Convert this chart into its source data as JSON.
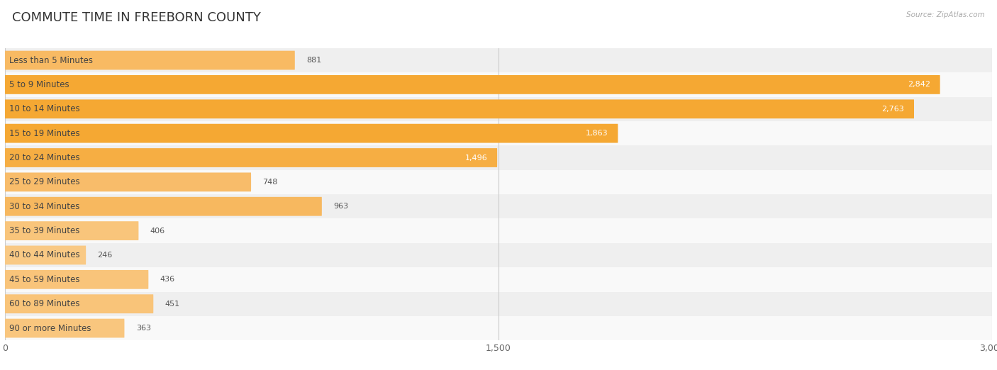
{
  "title": "COMMUTE TIME IN FREEBORN COUNTY",
  "source": "Source: ZipAtlas.com",
  "categories": [
    "Less than 5 Minutes",
    "5 to 9 Minutes",
    "10 to 14 Minutes",
    "15 to 19 Minutes",
    "20 to 24 Minutes",
    "25 to 29 Minutes",
    "30 to 34 Minutes",
    "35 to 39 Minutes",
    "40 to 44 Minutes",
    "45 to 59 Minutes",
    "60 to 89 Minutes",
    "90 or more Minutes"
  ],
  "values": [
    881,
    2842,
    2763,
    1863,
    1496,
    748,
    963,
    406,
    246,
    436,
    451,
    363
  ],
  "xlim": [
    0,
    3000
  ],
  "xticks": [
    0,
    1500,
    3000
  ],
  "xtick_labels": [
    "0",
    "1,500",
    "3,000"
  ],
  "bar_color_high": "#f5a833",
  "bar_color_mid": "#f8bc6a",
  "bar_color_low": "#fad090",
  "row_even_color": "#efefef",
  "row_odd_color": "#f9f9f9",
  "label_color": "#444444",
  "value_color_inside": "#ffffff",
  "value_color_outside": "#555555",
  "title_color": "#333333",
  "source_color": "#aaaaaa",
  "title_fontsize": 13,
  "label_fontsize": 8.5,
  "value_fontsize": 8,
  "tick_fontsize": 9,
  "threshold_white_text": 1400
}
